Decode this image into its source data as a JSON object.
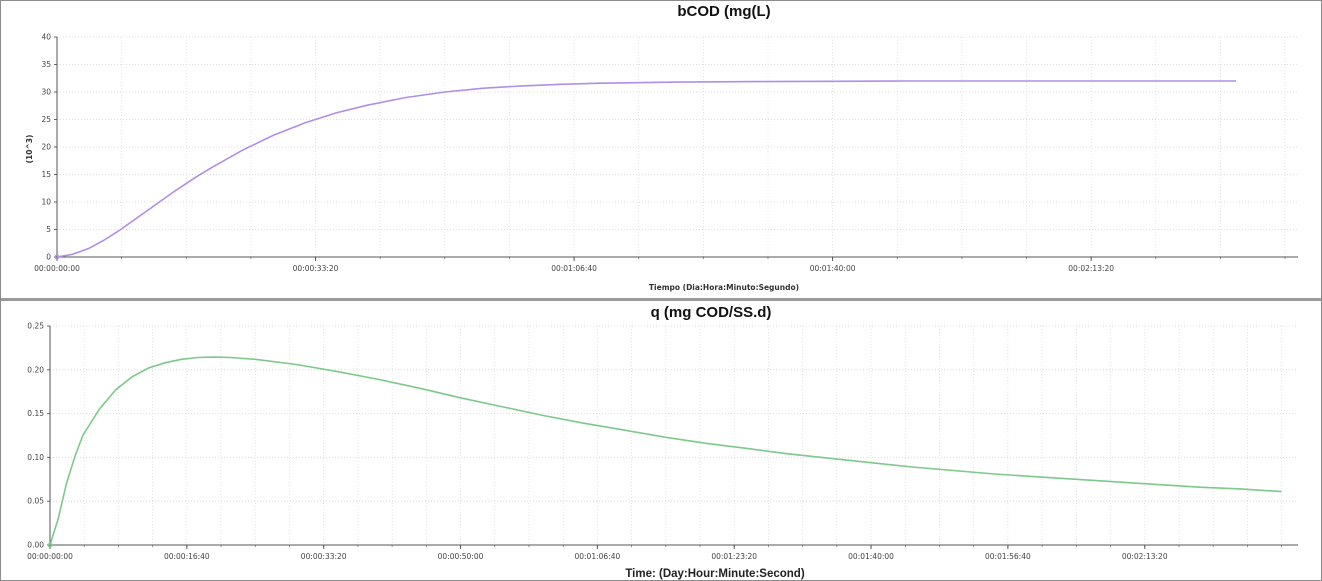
{
  "chart_data": [
    {
      "type": "line",
      "title": "bCOD (mg(L)",
      "xlabel": "Tiempo (Dia:Hora:Minuto:Segundo)",
      "ylabel": "(10^3)",
      "x_unit": "seconds",
      "xlim": [
        0,
        160
      ],
      "ylim": [
        0,
        40
      ],
      "yticks": [
        0,
        5,
        10,
        15,
        20,
        25,
        30,
        35,
        40
      ],
      "ytick_labels": [
        "0",
        "5",
        "10",
        "15",
        "20",
        "25",
        "30",
        "35",
        "40"
      ],
      "xticks": [
        0,
        33.333,
        66.667,
        100,
        133.333
      ],
      "xtick_labels": [
        "00:00:00:00",
        "00:00:33:20",
        "00:01:06:40",
        "00:01:40:00",
        "00:02:13:20"
      ],
      "grid": true,
      "series": [
        {
          "color": "#b08ee8",
          "x": [
            0,
            2,
            4,
            6,
            8,
            10,
            12,
            15,
            18,
            20,
            24,
            28,
            32,
            36,
            40,
            45,
            50,
            55,
            60,
            65,
            70,
            80,
            90,
            100,
            110,
            120,
            130,
            140,
            150,
            152
          ],
          "y": [
            0,
            0.5,
            1.5,
            3.0,
            4.8,
            6.8,
            8.8,
            11.8,
            14.6,
            16.3,
            19.5,
            22.2,
            24.4,
            26.2,
            27.6,
            29.0,
            30.0,
            30.7,
            31.1,
            31.4,
            31.6,
            31.8,
            31.9,
            31.95,
            32.0,
            32.0,
            32.0,
            32.0,
            32.0,
            32.0
          ]
        }
      ]
    },
    {
      "type": "line",
      "title": "q (mg COD/SS.d)",
      "xlabel": "Time: (Day:Hour:Minute:Second)",
      "ylabel": "",
      "x_unit": "seconds",
      "xlim": [
        0,
        152
      ],
      "ylim": [
        0,
        0.25
      ],
      "yticks": [
        0,
        0.05,
        0.1,
        0.15,
        0.2,
        0.25
      ],
      "ytick_labels": [
        "0.00",
        "0.05",
        "0.10",
        "0.15",
        "0.20",
        "0.25"
      ],
      "xticks": [
        0,
        16.667,
        33.333,
        50,
        66.667,
        83.333,
        100,
        116.667,
        133.333
      ],
      "xtick_labels": [
        "00:00:00:00",
        "00:00:16:40",
        "00:00:33:20",
        "00:00:50:00",
        "00:01:06:40",
        "00:01:23:20",
        "00:01:40:00",
        "00:01:56:40",
        "00:02:13:20"
      ],
      "grid": true,
      "series": [
        {
          "color": "#7cc98a",
          "x": [
            0,
            1,
            2,
            3,
            4,
            6,
            8,
            10,
            12,
            14,
            16,
            18,
            20,
            22,
            25,
            30,
            35,
            40,
            45,
            50,
            55,
            60,
            65,
            70,
            75,
            80,
            85,
            90,
            95,
            100,
            105,
            110,
            115,
            120,
            125,
            130,
            135,
            140,
            145,
            150
          ],
          "y": [
            0,
            0.03,
            0.07,
            0.1,
            0.125,
            0.155,
            0.177,
            0.192,
            0.202,
            0.208,
            0.212,
            0.214,
            0.2145,
            0.214,
            0.212,
            0.206,
            0.198,
            0.189,
            0.179,
            0.168,
            0.158,
            0.148,
            0.139,
            0.131,
            0.123,
            0.116,
            0.11,
            0.104,
            0.099,
            0.094,
            0.089,
            0.085,
            0.081,
            0.078,
            0.075,
            0.072,
            0.069,
            0.066,
            0.064,
            0.061
          ]
        }
      ]
    }
  ]
}
